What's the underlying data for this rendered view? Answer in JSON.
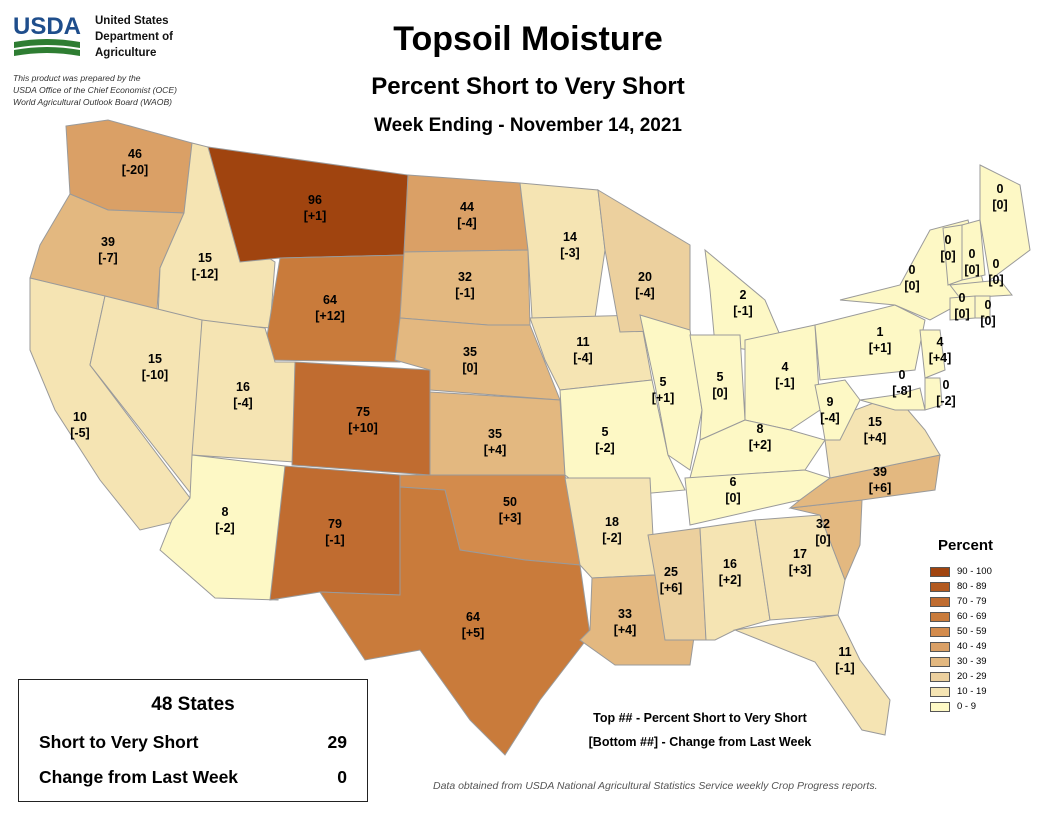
{
  "header": {
    "agency": [
      "United States",
      "Department of",
      "Agriculture"
    ],
    "logo_text": "USDA",
    "prepared_by": [
      "This product was prepared by the",
      "USDA Office of the Chief Economist (OCE)",
      "World Agricultural Outlook Board (WAOB)"
    ],
    "title": "Topsoil Moisture",
    "subtitle": "Percent Short to Very Short",
    "date_line": "Week Ending - November 14, 2021"
  },
  "states": [
    {
      "abbr": "WA",
      "value": 46,
      "change": "[-20]"
    },
    {
      "abbr": "OR",
      "value": 39,
      "change": "[-7]"
    },
    {
      "abbr": "CA",
      "value": 10,
      "change": "[-5]"
    },
    {
      "abbr": "ID",
      "value": 15,
      "change": "[-12]"
    },
    {
      "abbr": "NV",
      "value": 15,
      "change": "[-10]"
    },
    {
      "abbr": "MT",
      "value": 96,
      "change": "[+1]"
    },
    {
      "abbr": "WY",
      "value": 64,
      "change": "[+12]"
    },
    {
      "abbr": "UT",
      "value": 16,
      "change": "[-4]"
    },
    {
      "abbr": "AZ",
      "value": 8,
      "change": "[-2]"
    },
    {
      "abbr": "CO",
      "value": 75,
      "change": "[+10]"
    },
    {
      "abbr": "NM",
      "value": 79,
      "change": "[-1]"
    },
    {
      "abbr": "ND",
      "value": 44,
      "change": "[-4]"
    },
    {
      "abbr": "SD",
      "value": 32,
      "change": "[-1]"
    },
    {
      "abbr": "NE",
      "value": 35,
      "change": "[0]"
    },
    {
      "abbr": "KS",
      "value": 35,
      "change": "[+4]"
    },
    {
      "abbr": "OK",
      "value": 50,
      "change": "[+3]"
    },
    {
      "abbr": "TX",
      "value": 64,
      "change": "[+5]"
    },
    {
      "abbr": "MN",
      "value": 14,
      "change": "[-3]"
    },
    {
      "abbr": "IA",
      "value": 11,
      "change": "[-4]"
    },
    {
      "abbr": "MO",
      "value": 5,
      "change": "[-2]"
    },
    {
      "abbr": "AR",
      "value": 18,
      "change": "[-2]"
    },
    {
      "abbr": "LA",
      "value": 33,
      "change": "[+4]"
    },
    {
      "abbr": "WI",
      "value": 20,
      "change": "[-4]"
    },
    {
      "abbr": "IL",
      "value": 5,
      "change": "[+1]"
    },
    {
      "abbr": "MS",
      "value": 25,
      "change": "[+6]"
    },
    {
      "abbr": "MI",
      "value": 2,
      "change": "[-1]"
    },
    {
      "abbr": "IN",
      "value": 5,
      "change": "[0]"
    },
    {
      "abbr": "OH",
      "value": 4,
      "change": "[-1]"
    },
    {
      "abbr": "KY",
      "value": 8,
      "change": "[+2]"
    },
    {
      "abbr": "TN",
      "value": 6,
      "change": "[0]"
    },
    {
      "abbr": "AL",
      "value": 16,
      "change": "[+2]"
    },
    {
      "abbr": "GA",
      "value": 17,
      "change": "[+3]"
    },
    {
      "abbr": "FL",
      "value": 11,
      "change": "[-1]"
    },
    {
      "abbr": "SC",
      "value": 32,
      "change": "[0]"
    },
    {
      "abbr": "NC",
      "value": 39,
      "change": "[+6]"
    },
    {
      "abbr": "VA",
      "value": 15,
      "change": "[+4]"
    },
    {
      "abbr": "WV",
      "value": 9,
      "change": "[-4]"
    },
    {
      "abbr": "PA",
      "value": 1,
      "change": "[+1]"
    },
    {
      "abbr": "NY",
      "value": 0,
      "change": "[0]"
    },
    {
      "abbr": "MD",
      "value": 0,
      "change": "[-8]"
    },
    {
      "abbr": "DE",
      "value": 0,
      "change": "[-2]"
    },
    {
      "abbr": "NJ",
      "value": 4,
      "change": "[+4]"
    },
    {
      "abbr": "VT",
      "value": 0,
      "change": "[0]"
    },
    {
      "abbr": "NH",
      "value": 0,
      "change": "[0]"
    },
    {
      "abbr": "ME",
      "value": 0,
      "change": "[0]"
    },
    {
      "abbr": "MA",
      "value": 0,
      "change": "[0]"
    },
    {
      "abbr": "CT",
      "value": 0,
      "change": "[0]"
    },
    {
      "abbr": "RI",
      "value": 0,
      "change": "[0]"
    }
  ],
  "legend": {
    "title": "Percent",
    "bins": [
      {
        "label": "90 - 100",
        "color": "#a0440f"
      },
      {
        "label": "80 - 89",
        "color": "#b35a20"
      },
      {
        "label": "70 - 79",
        "color": "#c06c30"
      },
      {
        "label": "60 - 69",
        "color": "#c97b3b"
      },
      {
        "label": "50 - 59",
        "color": "#d38b4c"
      },
      {
        "label": "40 - 49",
        "color": "#daa066"
      },
      {
        "label": "30 - 39",
        "color": "#e3b880"
      },
      {
        "label": "20 - 29",
        "color": "#ecd09e"
      },
      {
        "label": "10 - 19",
        "color": "#f5e4b3"
      },
      {
        "label": "0 - 9",
        "color": "#fdf8c5"
      }
    ]
  },
  "summary": {
    "title": "48 States",
    "rows": [
      {
        "label": "Short to Very Short",
        "value": "29"
      },
      {
        "label": "Change from Last Week",
        "value": "0"
      }
    ]
  },
  "notes": [
    "Top ## - Percent Short to Very Short",
    "[Bottom ##] - Change from Last Week"
  ],
  "footer": "Data obtained from USDA National Agricultural Statistics Service weekly Crop Progress reports.",
  "colors": {
    "border": "#9a9a9a",
    "logo_blue": "#1f4e8c",
    "logo_green": "#2e7d32"
  }
}
